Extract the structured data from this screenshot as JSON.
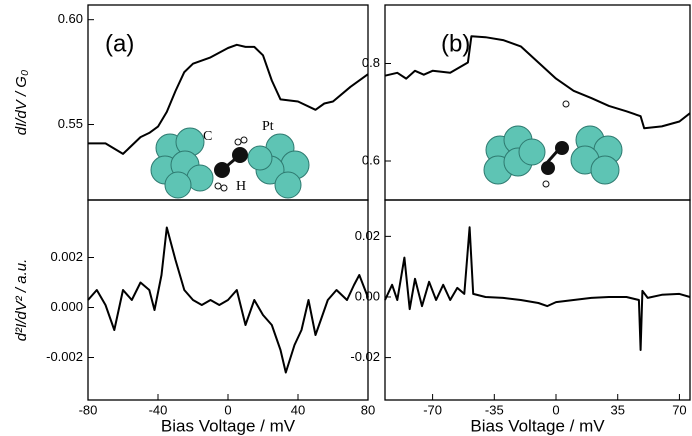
{
  "chart_data": [
    {
      "type": "line",
      "panel_label": "(a)",
      "ylabel": "dI/dV / G₀",
      "color": "#000000",
      "x": [
        -80,
        -70,
        -60,
        -50,
        -45,
        -40,
        -35,
        -30,
        -25,
        -20,
        -10,
        0,
        5,
        10,
        15,
        20,
        25,
        30,
        40,
        50,
        55,
        60,
        70,
        80
      ],
      "values": [
        0.541,
        0.541,
        0.536,
        0.544,
        0.546,
        0.549,
        0.556,
        0.566,
        0.575,
        0.579,
        0.582,
        0.5865,
        0.588,
        0.587,
        0.587,
        0.583,
        0.571,
        0.562,
        0.561,
        0.557,
        0.56,
        0.561,
        0.568,
        0.574
      ],
      "xlim": [
        -80,
        80
      ],
      "ylim": [
        0.514,
        0.607
      ],
      "yticks": [
        0.55,
        {
          "value": 0.6,
          "label": "0.60"
        }
      ],
      "annotations": [
        "C",
        "H",
        "Pt"
      ]
    },
    {
      "type": "line",
      "ylabel": "d²I/dV² / a.u.",
      "xlabel": "Bias Voltage / mV",
      "color": "#000000",
      "x": [
        -80,
        -75,
        -70,
        -65,
        -60,
        -55,
        -50,
        -45,
        -42,
        -38,
        -35,
        -30,
        -25,
        -20,
        -15,
        -10,
        -5,
        0,
        5,
        10,
        15,
        20,
        25,
        30,
        33,
        38,
        42,
        46,
        50,
        53,
        57,
        62,
        68,
        72,
        75,
        80
      ],
      "values": [
        0.0003,
        0.0007,
        0.0001,
        -0.0009,
        0.0007,
        0.0003,
        0.001,
        0.0007,
        -0.0001,
        0.0013,
        0.0032,
        0.0019,
        0.0007,
        0.0003,
        0.0001,
        0.0003,
        0.0001,
        0.0003,
        0.0007,
        -0.0007,
        0.0003,
        -0.0003,
        -0.0007,
        -0.0017,
        -0.0026,
        -0.0015,
        -0.0009,
        0.0003,
        -0.0011,
        -0.0005,
        0.0003,
        0.0007,
        0.0003,
        0.0009,
        0.0013,
        0.0004
      ],
      "xlim": [
        -80,
        80
      ],
      "ylim": [
        -0.0037,
        0.0043
      ],
      "xticks": [
        -80,
        -40,
        0,
        40,
        80
      ],
      "yticks": [
        {
          "value": -0.002,
          "label": "-0.002"
        },
        {
          "value": 0,
          "label": "0.000"
        },
        0.002
      ]
    },
    {
      "type": "line",
      "panel_label": "(b)",
      "color": "#000000",
      "x": [
        -97,
        -90,
        -85,
        -80,
        -75,
        -70,
        -60,
        -50,
        -48,
        -40,
        -30,
        -20,
        -10,
        0,
        10,
        20,
        30,
        40,
        48,
        50,
        60,
        70,
        76
      ],
      "values": [
        0.775,
        0.781,
        0.769,
        0.785,
        0.777,
        0.785,
        0.781,
        0.802,
        0.856,
        0.854,
        0.848,
        0.835,
        0.802,
        0.769,
        0.744,
        0.729,
        0.713,
        0.702,
        0.692,
        0.667,
        0.671,
        0.681,
        0.698
      ],
      "xlim": [
        -97,
        76
      ],
      "ylim": [
        0.52,
        0.92
      ],
      "yticks": [
        0.6,
        0.8
      ]
    },
    {
      "type": "line",
      "xlabel": "Bias Voltage / mV",
      "color": "#000000",
      "x": [
        -97,
        -93,
        -90,
        -86,
        -83,
        -80,
        -76,
        -72,
        -68,
        -64,
        -60,
        -56,
        -52,
        -49,
        -47,
        -40,
        -30,
        -20,
        -10,
        -5,
        0,
        10,
        20,
        30,
        40,
        47,
        48,
        49,
        52,
        60,
        70,
        76
      ],
      "values": [
        -0.001,
        0.004,
        -0.001,
        0.013,
        -0.004,
        0.006,
        -0.003,
        0.005,
        -0.001,
        0.004,
        -0.001,
        0.003,
        0.001,
        0.023,
        0.001,
        0,
        -0.0003,
        -0.001,
        -0.002,
        -0.003,
        -0.0017,
        -0.001,
        -0.0003,
        0,
        0,
        -0.001,
        -0.0175,
        0.002,
        -0.0003,
        0.0007,
        0.001,
        0
      ],
      "xlim": [
        -97,
        76
      ],
      "ylim": [
        -0.034,
        0.032
      ],
      "xticks": [
        -70,
        -35,
        0,
        35,
        70
      ],
      "yticks": [
        {
          "value": -0.02,
          "label": "-0.02"
        },
        {
          "value": 0,
          "label": "0.00"
        },
        0.02
      ]
    }
  ]
}
